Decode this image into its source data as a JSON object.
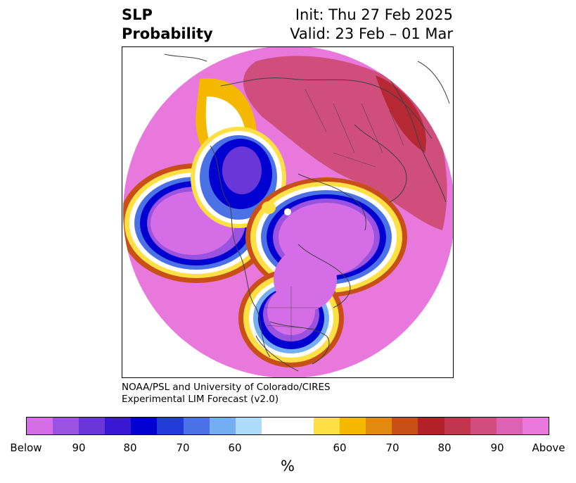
{
  "title": {
    "left_line1": "SLP",
    "left_line2": "Probability",
    "right_line1": "Init: Thu 27 Feb 2025",
    "right_line2": "Valid: 23 Feb – 01 Mar"
  },
  "credit": {
    "line1": "NOAA/PSL and University of Colorado/CIRES",
    "line2": "Experimental LIM Forecast (v2.0)"
  },
  "colorbar": {
    "colors": [
      "#d56ee6",
      "#9a52e0",
      "#6a36d8",
      "#3918d4",
      "#0000d0",
      "#213cd8",
      "#4a72e6",
      "#72aef0",
      "#acdcfa",
      "#ffffff",
      "#ffffff",
      "#ffe044",
      "#f5b800",
      "#e08a10",
      "#c85018",
      "#b02228",
      "#c0364c",
      "#cf4e7c",
      "#dc62b4",
      "#e878dc"
    ],
    "labels": [
      "Below",
      "90",
      "80",
      "70",
      "60",
      "60",
      "70",
      "80",
      "90",
      "Above"
    ],
    "unit": "%"
  },
  "map": {
    "projection": "polar stereographic",
    "colors": {
      "above_far": "#e878dc",
      "above_mid": "#cf4e7c",
      "above_high": "#b02228",
      "below_far": "#d56ee6",
      "below_high": "#0000d0",
      "land_lines": "#404040"
    }
  }
}
